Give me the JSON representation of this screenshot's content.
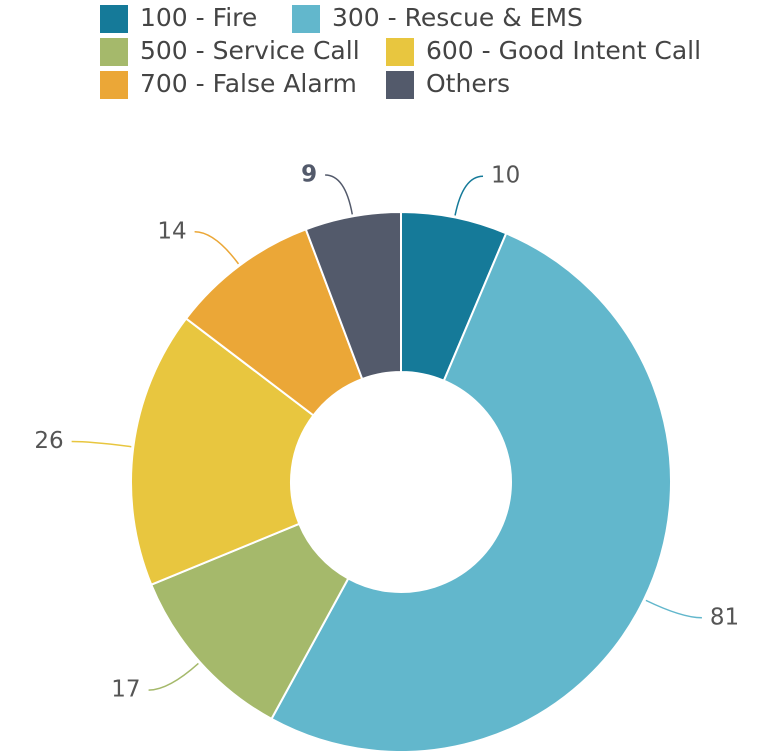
{
  "chart_data": {
    "type": "donut",
    "categories": [
      "100 - Fire",
      "300 - Rescue & EMS",
      "500 - Service Call",
      "600 - Good Intent Call",
      "700 - False Alarm",
      "Others"
    ],
    "values": [
      10,
      81,
      17,
      26,
      14,
      9
    ],
    "colors": [
      "#157a99",
      "#62b7cc",
      "#a5b96b",
      "#e8c63f",
      "#eba737",
      "#535a6b"
    ],
    "legend": "top"
  }
}
